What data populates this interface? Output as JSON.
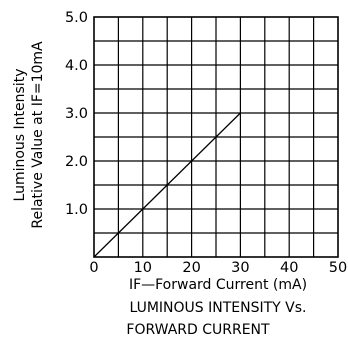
{
  "chart_data": {
    "type": "line",
    "title": [
      "LUMINOUS INTENSITY Vs.",
      "FORWARD CURRENT"
    ],
    "xlabel": "IF—Forward Current (mA)",
    "ylabel": [
      "Luminous Intensity",
      "Relative Value at IF=10mA"
    ],
    "xlim": [
      0,
      50
    ],
    "ylim": [
      0,
      5.0
    ],
    "x_ticks": [
      "0",
      "10",
      "20",
      "30",
      "40",
      "50"
    ],
    "y_ticks": [
      "1.0",
      "2.0",
      "3.0",
      "4.0",
      "5.0"
    ],
    "grid": true,
    "series": [
      {
        "x": [
          0,
          30
        ],
        "y": [
          0,
          3.0
        ]
      }
    ]
  }
}
